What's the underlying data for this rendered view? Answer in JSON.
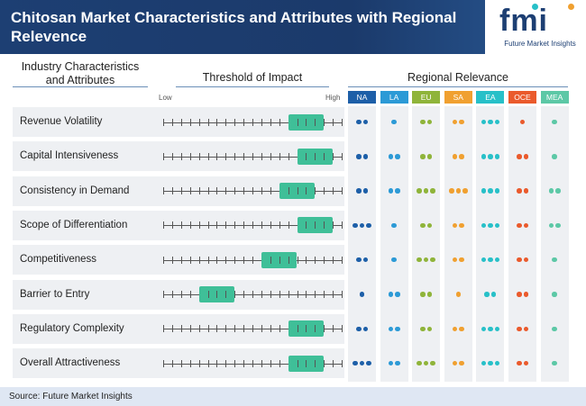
{
  "header": {
    "title": "Chitosan Market Characteristics and Attributes with Regional Relevence",
    "logo_mark": "fmi",
    "logo_sub": "Future Market Insights"
  },
  "columns": {
    "characteristics": "Industry Characteristics\nand Attributes",
    "threshold": "Threshold of Impact",
    "regional": "Regional Relevance",
    "low": "Low",
    "high": "High"
  },
  "chart_data": {
    "type": "table",
    "scale": {
      "min": 0,
      "max": 20,
      "ticks": 21
    },
    "rows": [
      {
        "label": "Revenue Volatility",
        "impact": [
          14,
          18
        ],
        "regional": {
          "NA": 2,
          "LA": 1,
          "EU": 2,
          "SA": 2,
          "EA": 3,
          "OCE": 1,
          "MEA": 1
        }
      },
      {
        "label": "Capital Intensiveness",
        "impact": [
          15,
          19
        ],
        "regional": {
          "NA": 2,
          "LA": 2,
          "EU": 2,
          "SA": 2,
          "EA": 3,
          "OCE": 2,
          "MEA": 1
        }
      },
      {
        "label": "Consistency in Demand",
        "impact": [
          13,
          17
        ],
        "regional": {
          "NA": 2,
          "LA": 2,
          "EU": 3,
          "SA": 3,
          "EA": 3,
          "OCE": 2,
          "MEA": 2
        }
      },
      {
        "label": "Scope of Differentiation",
        "impact": [
          15,
          19
        ],
        "regional": {
          "NA": 3,
          "LA": 1,
          "EU": 2,
          "SA": 2,
          "EA": 3,
          "OCE": 2,
          "MEA": 2
        }
      },
      {
        "label": "Competitiveness",
        "impact": [
          11,
          15
        ],
        "regional": {
          "NA": 2,
          "LA": 1,
          "EU": 3,
          "SA": 2,
          "EA": 3,
          "OCE": 2,
          "MEA": 1
        }
      },
      {
        "label": "Barrier to Entry",
        "impact": [
          4,
          8
        ],
        "regional": {
          "NA": 1,
          "LA": 2,
          "EU": 2,
          "SA": 1,
          "EA": 2,
          "OCE": 2,
          "MEA": 1
        }
      },
      {
        "label": "Regulatory Complexity",
        "impact": [
          14,
          18
        ],
        "regional": {
          "NA": 2,
          "LA": 2,
          "EU": 2,
          "SA": 2,
          "EA": 3,
          "OCE": 2,
          "MEA": 1
        }
      },
      {
        "label": "Overall Attractiveness",
        "impact": [
          14,
          18
        ],
        "regional": {
          "NA": 3,
          "LA": 2,
          "EU": 3,
          "SA": 2,
          "EA": 3,
          "OCE": 2,
          "MEA": 1
        }
      }
    ],
    "regions": [
      {
        "code": "NA",
        "color": "#1d5fa8"
      },
      {
        "code": "LA",
        "color": "#2c9ad6"
      },
      {
        "code": "EU",
        "color": "#8fb43a"
      },
      {
        "code": "SA",
        "color": "#f0a030"
      },
      {
        "code": "EA",
        "color": "#27c0c8"
      },
      {
        "code": "OCE",
        "color": "#ea5a2c"
      },
      {
        "code": "MEA",
        "color": "#5cc8a6"
      }
    ],
    "bar_color": "#3fbf98"
  },
  "footer": {
    "source": "Source: Future Market Insights"
  }
}
